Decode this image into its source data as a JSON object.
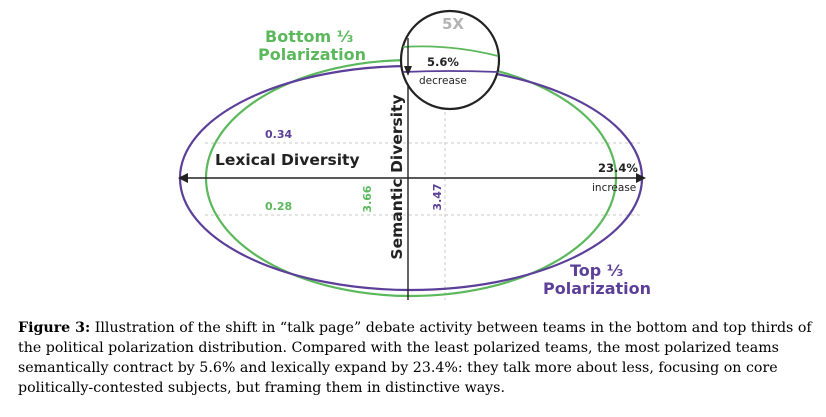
{
  "colors": {
    "green": "#5cb85c",
    "purple": "#5b3f99",
    "axis": "#222222",
    "guide": "#c8c8c8",
    "zoom_label": "#b3b3b3"
  },
  "diagram": {
    "bottom_label_line1": "Bottom ⅓",
    "bottom_label_line2": "Polarization",
    "top_label_line1": "Top ⅓",
    "top_label_line2": "Polarization",
    "x_axis_label": "Lexical Diversity",
    "y_axis_label": "Semantic Diversity",
    "zoom_label": "5X",
    "semantic_change_value": "5.6%",
    "semantic_change_word": "decrease",
    "lexical_change_value": "23.4%",
    "lexical_change_word": "increase",
    "green_upper_value": "0.34",
    "green_lower_value": "0.28",
    "green_height_value": "3.66",
    "purple_height_value": "3.47"
  },
  "caption": {
    "label": "Figure 3:",
    "text": "Illustration of the shift in “talk page” debate activity between teams in the bottom and top thirds of the political polarization distribution. Compared with the least polarized teams, the most polarized teams semantically contract by 5.6% and lexically expand by 23.4%: they talk more about less, focusing on core politically-contested subjects, but framing them in distinctive ways."
  }
}
